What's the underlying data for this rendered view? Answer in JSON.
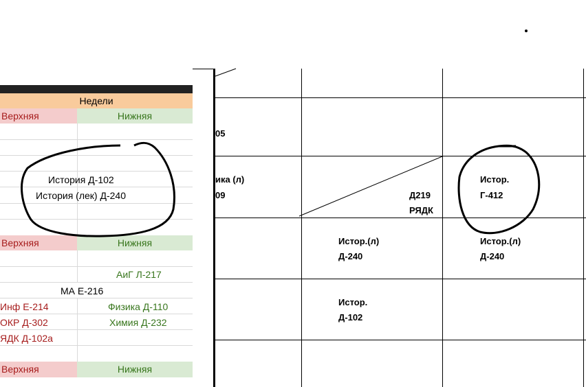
{
  "sheet": {
    "header": "Недели",
    "upper": "Верхняя",
    "lower": "Нижняя",
    "block1": {
      "line1": "История Д-102",
      "line2": "История (лек) Д-240"
    },
    "block2": {
      "row1_right": "АиГ Л-217",
      "row2_center": "МА Е-216",
      "row3_left": "Инф Е-214",
      "row3_right": "Физика Д-110",
      "row4_left": "ОКР Д-302",
      "row4_right": "Химия Д-232",
      "row5_left": "ЯДК Д-102а"
    }
  },
  "table": {
    "r1": {
      "c0": "05"
    },
    "r2": {
      "c0_line1": "ика (л)",
      "c0_line2": "09",
      "c1_line1": "Д219",
      "c1_line2": "РЯДК",
      "c2_line1": "Истор.",
      "c2_line2": "Г-412"
    },
    "r3": {
      "c1_line1": "Истор.(л)",
      "c1_line2": "Д-240",
      "c2_line1": "Истор.(л)",
      "c2_line2": "Д-240"
    },
    "r4": {
      "c1_line1": "Истор.",
      "c1_line2": "Д-102"
    }
  }
}
